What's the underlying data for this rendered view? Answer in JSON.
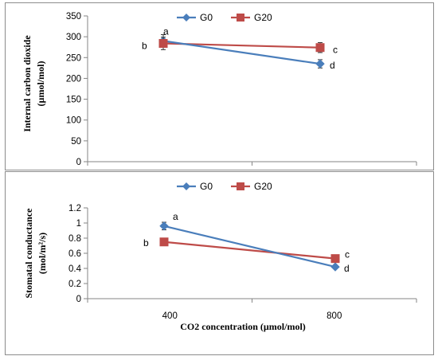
{
  "chart_data": [
    {
      "type": "line",
      "title": "",
      "xlabel": "",
      "ylabel_lines": [
        "Internal carbon dioxide",
        "(µmol/mol)"
      ],
      "ylim": [
        0,
        350
      ],
      "yticks": [
        "0",
        "50",
        "100",
        "150",
        "200",
        "250",
        "300",
        "350"
      ],
      "categories": [
        "400",
        "800"
      ],
      "show_x_tick_labels": false,
      "grid": false,
      "legend": "top",
      "series": [
        {
          "name": "G0",
          "color": "#4a7ebb",
          "marker": "diamond",
          "values": [
            290,
            235
          ],
          "error": [
            15,
            10
          ],
          "letters": [
            "a",
            "d"
          ]
        },
        {
          "name": "G20",
          "color": "#be4b48",
          "marker": "square",
          "values": [
            284,
            274
          ],
          "error": [
            15,
            12
          ],
          "letters": [
            "b",
            "c"
          ]
        }
      ]
    },
    {
      "type": "line",
      "title": "",
      "xlabel": "CO2 concentration (µmol/mol)",
      "ylabel_lines": [
        "Stomatal conductance",
        "(mol/m²/s)"
      ],
      "ylim": [
        0,
        1.2
      ],
      "yticks": [
        "0",
        "0.2",
        "0.4",
        "0.6",
        "0.8",
        "1",
        "1.2"
      ],
      "categories": [
        "400",
        "800"
      ],
      "show_x_tick_labels": true,
      "grid": false,
      "legend": "top",
      "series": [
        {
          "name": "G0",
          "color": "#4a7ebb",
          "marker": "diamond",
          "values": [
            0.96,
            0.42
          ],
          "error": [
            0.05,
            0.02
          ],
          "letters": [
            "a",
            "d"
          ]
        },
        {
          "name": "G20",
          "color": "#be4b48",
          "marker": "square",
          "values": [
            0.75,
            0.53
          ],
          "error": [
            0.02,
            0.02
          ],
          "letters": [
            "b",
            "c"
          ]
        }
      ]
    }
  ]
}
